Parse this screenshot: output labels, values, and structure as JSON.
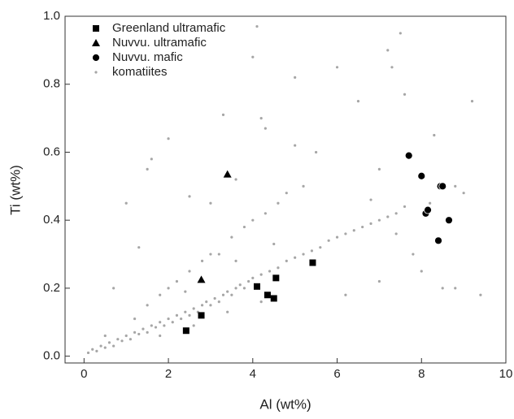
{
  "chart_data": {
    "type": "scatter",
    "x_label": "Al (wt%)",
    "y_label": "Ti (wt%)",
    "xlim": [
      -0.45,
      10
    ],
    "ylim": [
      -0.02,
      1.0
    ],
    "xticks": [
      0,
      2,
      4,
      6,
      8,
      10
    ],
    "yticks": [
      {
        "value": 0,
        "label": "0.0"
      },
      0.2,
      0.4,
      0.6,
      0.8,
      {
        "value": 1,
        "label": "1.0"
      }
    ],
    "legend": "upper left",
    "series": [
      {
        "name": "Greenland ultramafic",
        "color": "#000000",
        "marker": "square",
        "x": [
          2.42,
          2.78,
          4.1,
          4.35,
          4.5,
          4.55,
          5.42
        ],
        "values": [
          0.075,
          0.12,
          0.205,
          0.18,
          0.17,
          0.23,
          0.275
        ]
      },
      {
        "name": "Nuvvu. ultramafic",
        "color": "#000000",
        "marker": "triangle",
        "x": [
          2.78,
          3.4
        ],
        "values": [
          0.225,
          0.535
        ]
      },
      {
        "name": "Nuvvu. mafic",
        "color": "#000000",
        "marker": "circle",
        "x": [
          7.7,
          8.0,
          8.1,
          8.15,
          8.45,
          8.5,
          8.65,
          8.4
        ],
        "values": [
          0.59,
          0.53,
          0.42,
          0.43,
          0.5,
          0.5,
          0.4,
          0.34
        ]
      },
      {
        "name": "komatiites",
        "color": "#a6a6a6",
        "marker": "dot",
        "x": [
          0.1,
          0.2,
          0.3,
          0.4,
          0.5,
          0.6,
          0.7,
          0.8,
          0.9,
          1.0,
          1.1,
          1.2,
          1.3,
          1.4,
          1.5,
          1.6,
          1.7,
          1.8,
          1.9,
          2.0,
          2.1,
          2.2,
          2.3,
          2.4,
          2.5,
          2.6,
          2.7,
          2.8,
          2.9,
          3.0,
          3.1,
          3.2,
          3.3,
          3.4,
          3.5,
          3.6,
          3.7,
          3.8,
          3.9,
          4.0,
          4.2,
          4.4,
          4.6,
          4.8,
          5.0,
          5.2,
          5.4,
          5.6,
          5.8,
          6.0,
          6.2,
          6.4,
          6.6,
          6.8,
          7.0,
          7.2,
          7.4,
          7.6,
          1.5,
          1.8,
          2.0,
          2.2,
          2.5,
          2.8,
          3.0,
          3.2,
          3.5,
          3.8,
          4.0,
          4.3,
          4.6,
          4.8,
          4.5,
          3.6,
          2.4,
          1.2,
          0.5,
          1.8,
          2.6,
          3.4,
          4.2,
          1.0,
          1.5,
          1.6,
          2.0,
          3.3,
          4.1,
          4.0,
          4.2,
          4.3,
          5.0,
          6.0,
          5.5,
          6.5,
          7.0,
          7.2,
          7.3,
          7.5,
          7.6,
          7.8,
          8.0,
          8.3,
          8.5,
          8.8,
          9.2,
          9.4,
          9.0,
          8.8,
          6.2,
          7.0,
          5.0,
          2.5,
          6.8,
          7.4,
          8.2,
          0.7,
          1.3,
          3.0,
          3.6,
          5.2
        ],
        "values": [
          0.01,
          0.02,
          0.015,
          0.03,
          0.025,
          0.04,
          0.03,
          0.05,
          0.045,
          0.06,
          0.05,
          0.07,
          0.065,
          0.08,
          0.07,
          0.09,
          0.085,
          0.1,
          0.09,
          0.11,
          0.1,
          0.12,
          0.11,
          0.13,
          0.12,
          0.14,
          0.13,
          0.15,
          0.16,
          0.15,
          0.17,
          0.16,
          0.18,
          0.19,
          0.18,
          0.2,
          0.21,
          0.2,
          0.22,
          0.23,
          0.24,
          0.25,
          0.26,
          0.28,
          0.29,
          0.3,
          0.31,
          0.32,
          0.34,
          0.35,
          0.36,
          0.37,
          0.38,
          0.39,
          0.4,
          0.41,
          0.42,
          0.44,
          0.15,
          0.18,
          0.2,
          0.22,
          0.25,
          0.28,
          0.3,
          0.3,
          0.35,
          0.38,
          0.4,
          0.42,
          0.45,
          0.48,
          0.33,
          0.28,
          0.19,
          0.11,
          0.06,
          0.06,
          0.09,
          0.13,
          0.16,
          0.45,
          0.55,
          0.58,
          0.64,
          0.71,
          0.97,
          0.88,
          0.7,
          0.67,
          0.82,
          0.85,
          0.6,
          0.75,
          0.55,
          0.9,
          0.85,
          0.95,
          0.77,
          0.3,
          0.25,
          0.65,
          0.2,
          0.5,
          0.75,
          0.18,
          0.48,
          0.2,
          0.18,
          0.22,
          0.62,
          0.47,
          0.46,
          0.36,
          0.45,
          0.2,
          0.32,
          0.45,
          0.52,
          0.5
        ]
      }
    ]
  }
}
